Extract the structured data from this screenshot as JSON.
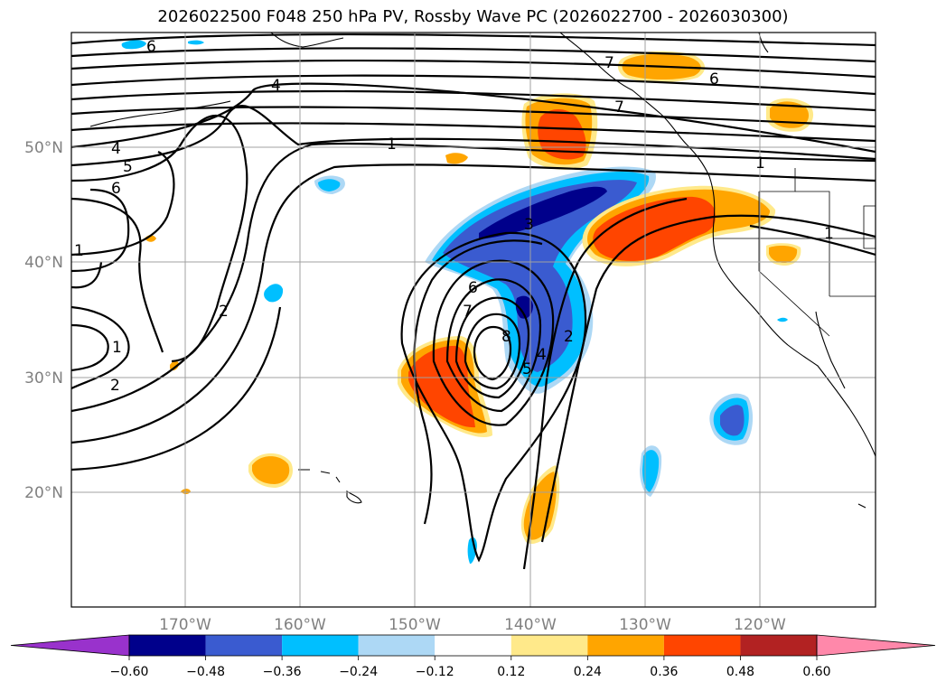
{
  "title": "2026022500 F048 250 hPa PV, Rossby Wave PC (2026022700 - 2026030300)",
  "map": {
    "lon_range": [
      -180,
      -110
    ],
    "lat_range": [
      10,
      60
    ],
    "grid_lats": [
      20,
      30,
      40,
      50
    ],
    "grid_lons": [
      -170,
      -160,
      -150,
      -140,
      -130,
      -120
    ],
    "lat_labels": [
      "20°N",
      "30°N",
      "40°N",
      "50°N"
    ],
    "lon_labels": [
      "170°W",
      "160°W",
      "150°W",
      "140°W",
      "130°W",
      "120°W"
    ]
  },
  "contour_labels": [
    "6",
    "4",
    "5",
    "6",
    "4",
    "1",
    "1",
    "2",
    "2",
    "1",
    "3",
    "6",
    "7",
    "8",
    "5",
    "4",
    "2",
    "1",
    "1",
    "6",
    "7",
    "7"
  ],
  "colorbar": {
    "ticks": [
      "−0.60",
      "−0.48",
      "−0.36",
      "−0.24",
      "−0.12",
      "0.12",
      "0.24",
      "0.36",
      "0.48",
      "0.60"
    ],
    "colors": [
      "#9932cc",
      "#00008b",
      "#3a5bd0",
      "#00bfff",
      "#add8f5",
      "#ffffff",
      "#ffe98a",
      "#ffa500",
      "#ff4500",
      "#b22222",
      "#ff88aa"
    ]
  }
}
